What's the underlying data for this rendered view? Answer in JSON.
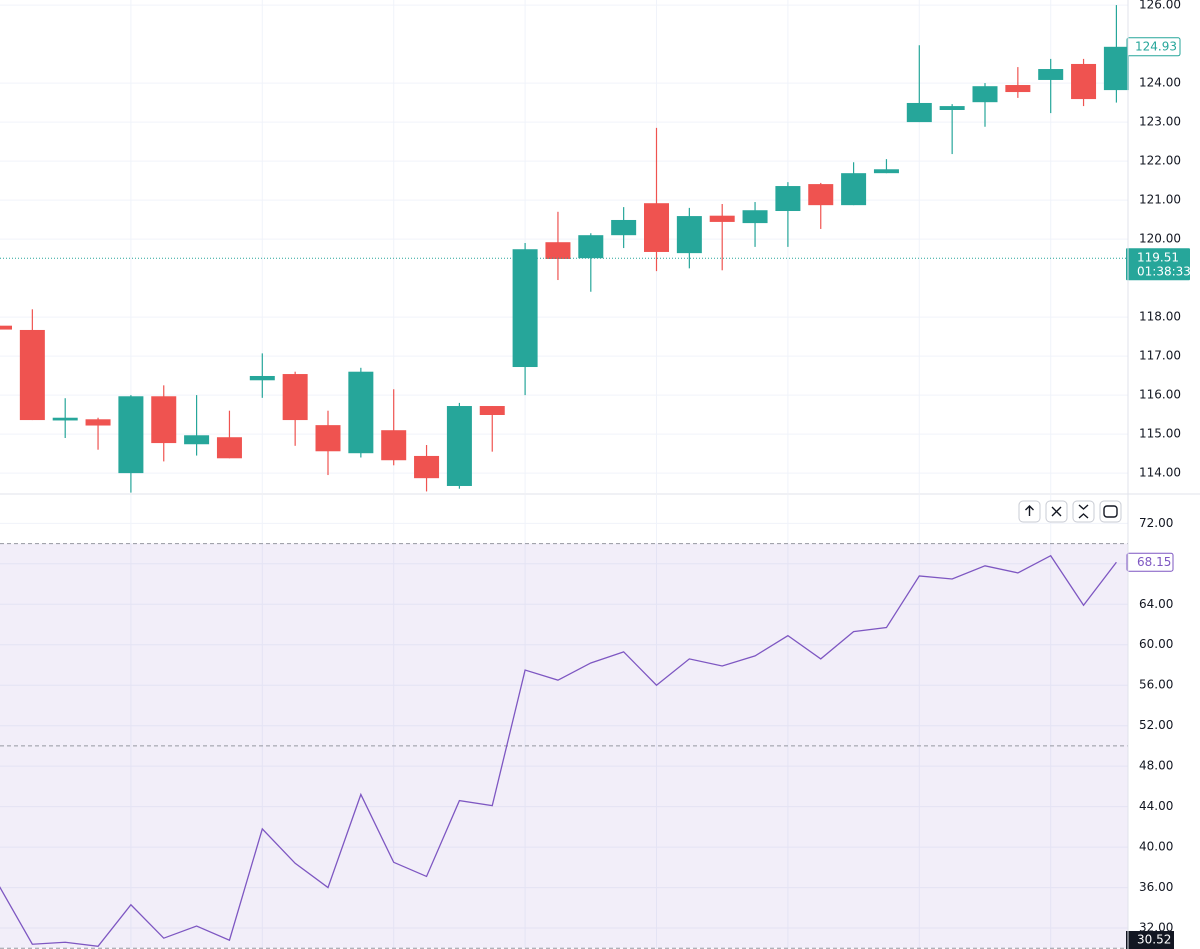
{
  "chart_data": [
    {
      "type": "candlestick",
      "open": [
        117.78,
        117.67,
        115.35,
        115.38,
        114.0,
        115.97,
        114.74,
        114.92,
        116.38,
        116.54,
        115.23,
        114.51,
        115.1,
        114.44,
        113.67,
        115.72,
        116.72,
        119.92,
        119.51,
        120.1,
        120.92,
        119.64,
        120.6,
        120.41,
        120.72,
        121.41,
        120.87,
        121.69,
        123.0,
        123.31,
        123.51,
        123.95,
        124.08,
        124.49,
        123.82
      ],
      "high": [
        117.78,
        118.2,
        115.92,
        115.42,
        116.0,
        116.25,
        116.0,
        115.6,
        117.07,
        116.6,
        115.6,
        116.7,
        116.15,
        114.72,
        115.8,
        115.72,
        119.9,
        120.7,
        120.15,
        120.82,
        122.85,
        120.8,
        120.9,
        120.95,
        121.46,
        121.44,
        121.97,
        122.05,
        124.97,
        123.46,
        124.0,
        124.41,
        124.62,
        124.62,
        126.0
      ],
      "low": [
        117.68,
        115.36,
        114.9,
        114.6,
        113.5,
        114.3,
        114.45,
        114.38,
        115.93,
        114.7,
        113.95,
        114.4,
        114.2,
        113.53,
        113.6,
        114.55,
        116.0,
        118.95,
        118.65,
        119.77,
        119.18,
        119.25,
        119.2,
        119.8,
        119.8,
        120.26,
        120.87,
        121.69,
        123.0,
        122.18,
        122.88,
        123.62,
        123.23,
        123.41,
        123.5
      ],
      "close": [
        117.68,
        115.36,
        115.42,
        115.22,
        115.97,
        114.77,
        114.97,
        114.38,
        116.49,
        115.36,
        114.56,
        116.6,
        114.33,
        113.87,
        115.72,
        115.49,
        119.74,
        119.49,
        120.1,
        120.49,
        119.67,
        120.59,
        120.44,
        120.74,
        121.36,
        120.87,
        121.69,
        121.79,
        123.49,
        123.41,
        123.92,
        123.77,
        124.36,
        123.59,
        124.93
      ],
      "up_color": "#26a69a",
      "down_color": "#ef5350",
      "ylim": [
        113.49,
        126.13
      ],
      "yticks": [
        {
          "value": 114,
          "label": "114.00"
        },
        {
          "value": 115,
          "label": "115.00"
        },
        {
          "value": 116,
          "label": "116.00"
        },
        {
          "value": 117,
          "label": "117.00"
        },
        {
          "value": 118,
          "label": "118.00"
        },
        {
          "value": 120,
          "label": "120.00"
        },
        {
          "value": 121,
          "label": "121.00"
        },
        {
          "value": 122,
          "label": "122.00"
        },
        {
          "value": 123,
          "label": "123.00"
        },
        {
          "value": 124,
          "label": "124.00"
        },
        {
          "value": 126,
          "label": "126.00"
        }
      ],
      "grid": true,
      "last_value": 124.93,
      "price_line": 119.51,
      "countdown": "01:38:33"
    },
    {
      "type": "line",
      "values": [
        36.1,
        30.4,
        30.6,
        30.2,
        34.3,
        31.0,
        32.2,
        30.8,
        41.8,
        38.4,
        36.0,
        45.2,
        38.5,
        37.1,
        44.6,
        44.1,
        57.5,
        56.5,
        58.2,
        59.3,
        56.0,
        58.6,
        57.9,
        58.9,
        60.9,
        58.6,
        61.3,
        61.7,
        66.8,
        66.5,
        67.8,
        67.1,
        68.8,
        63.9,
        68.15
      ],
      "color": "#7e57c2",
      "ylim": [
        29.93,
        74.8
      ],
      "yticks": [
        {
          "value": 32,
          "label": "32.00"
        },
        {
          "value": 36,
          "label": "36.00"
        },
        {
          "value": 40,
          "label": "40.00"
        },
        {
          "value": 44,
          "label": "44.00"
        },
        {
          "value": 48,
          "label": "48.00"
        },
        {
          "value": 52,
          "label": "52.00"
        },
        {
          "value": 56,
          "label": "56.00"
        },
        {
          "value": 60,
          "label": "60.00"
        },
        {
          "value": 64,
          "label": "64.00"
        },
        {
          "value": 68,
          "label": "68.00"
        },
        {
          "value": 72,
          "label": "72.00"
        }
      ],
      "grid": true,
      "band": [
        30,
        70
      ],
      "midline": 50,
      "last_value": 68.15,
      "crosshair_value": 30.52
    }
  ]
}
